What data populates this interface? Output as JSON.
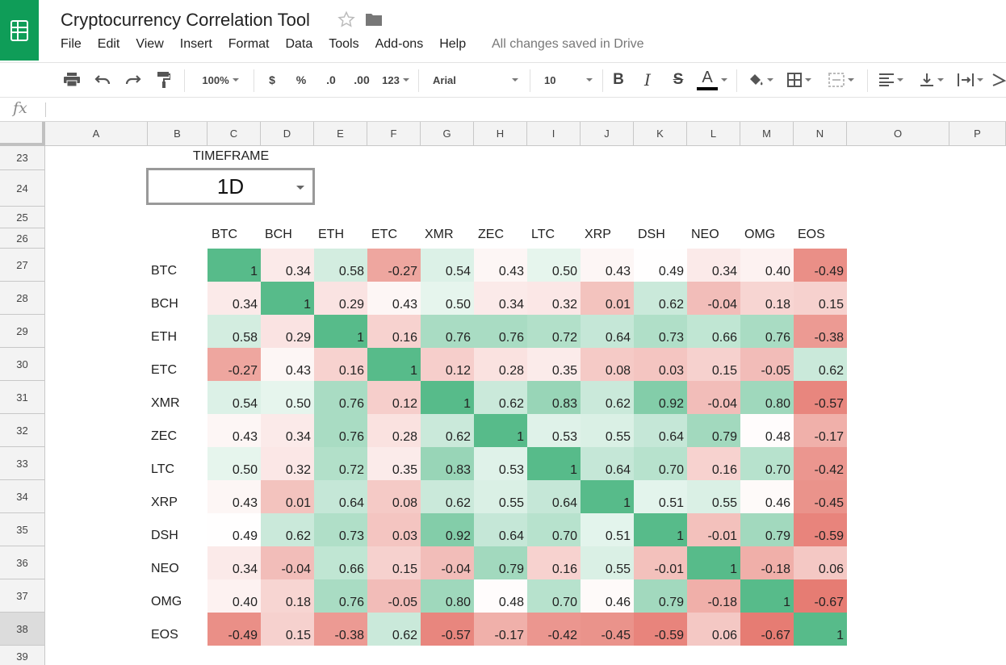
{
  "app": {
    "title": "Cryptocurrency Correlation Tool",
    "save_status": "All changes saved in Drive",
    "brand_color": "#0f9d58"
  },
  "menu": [
    "File",
    "Edit",
    "View",
    "Insert",
    "Format",
    "Data",
    "Tools",
    "Add-ons",
    "Help"
  ],
  "toolbar": {
    "zoom": "100%",
    "currency": "$",
    "percent": "%",
    "decrease_decimals": ".0",
    "increase_decimals": ".00",
    "more_formats": "123",
    "font": "Arial",
    "font_size": "10",
    "bold": "B",
    "italic": "I",
    "strikethrough": "S",
    "text_color_label": "A",
    "icons": [
      "print-icon",
      "undo-icon",
      "redo-icon",
      "paint-format-icon",
      "fill-color-icon",
      "borders-icon",
      "merge-cells-icon",
      "align-left-icon",
      "valign-bottom-icon",
      "text-wrap-icon",
      "rotate-icon"
    ]
  },
  "formula_bar": {
    "label": "fx",
    "value": ""
  },
  "grid": {
    "columns": [
      "A",
      "B",
      "C",
      "D",
      "E",
      "F",
      "G",
      "H",
      "I",
      "J",
      "K",
      "L",
      "M",
      "N",
      "O",
      "P"
    ],
    "rows": [
      "23",
      "24",
      "25",
      "26",
      "27",
      "28",
      "29",
      "30",
      "31",
      "32",
      "33",
      "34",
      "35",
      "36",
      "37",
      "38",
      "39"
    ],
    "active_row": "38"
  },
  "timeframe": {
    "label": "TIMEFRAME",
    "value": "1D"
  },
  "matrix": {
    "coins": [
      "BTC",
      "BCH",
      "ETH",
      "ETC",
      "XMR",
      "ZEC",
      "LTC",
      "XRP",
      "DSH",
      "NEO",
      "OMG",
      "EOS"
    ],
    "values": [
      [
        "1",
        "0.34",
        "0.58",
        "-0.27",
        "0.54",
        "0.43",
        "0.50",
        "0.43",
        "0.49",
        "0.34",
        "0.40",
        "-0.49"
      ],
      [
        "0.34",
        "1",
        "0.29",
        "0.43",
        "0.50",
        "0.34",
        "0.32",
        "0.01",
        "0.62",
        "-0.04",
        "0.18",
        "0.15"
      ],
      [
        "0.58",
        "0.29",
        "1",
        "0.16",
        "0.76",
        "0.76",
        "0.72",
        "0.64",
        "0.73",
        "0.66",
        "0.76",
        "-0.38"
      ],
      [
        "-0.27",
        "0.43",
        "0.16",
        "1",
        "0.12",
        "0.28",
        "0.35",
        "0.08",
        "0.03",
        "0.15",
        "-0.05",
        "0.62"
      ],
      [
        "0.54",
        "0.50",
        "0.76",
        "0.12",
        "1",
        "0.62",
        "0.83",
        "0.62",
        "0.92",
        "-0.04",
        "0.80",
        "-0.57"
      ],
      [
        "0.43",
        "0.34",
        "0.76",
        "0.28",
        "0.62",
        "1",
        "0.53",
        "0.55",
        "0.64",
        "0.79",
        "0.48",
        "-0.17"
      ],
      [
        "0.50",
        "0.32",
        "0.72",
        "0.35",
        "0.83",
        "0.53",
        "1",
        "0.64",
        "0.70",
        "0.16",
        "0.70",
        "-0.42"
      ],
      [
        "0.43",
        "0.01",
        "0.64",
        "0.08",
        "0.62",
        "0.55",
        "0.64",
        "1",
        "0.51",
        "0.55",
        "0.46",
        "-0.45"
      ],
      [
        "0.49",
        "0.62",
        "0.73",
        "0.03",
        "0.92",
        "0.64",
        "0.70",
        "0.51",
        "1",
        "-0.01",
        "0.79",
        "-0.59"
      ],
      [
        "0.34",
        "-0.04",
        "0.66",
        "0.15",
        "-0.04",
        "0.79",
        "0.16",
        "0.55",
        "-0.01",
        "1",
        "-0.18",
        "0.06"
      ],
      [
        "0.40",
        "0.18",
        "0.76",
        "-0.05",
        "0.80",
        "0.48",
        "0.70",
        "0.46",
        "0.79",
        "-0.18",
        "1",
        "-0.67"
      ],
      [
        "-0.49",
        "0.15",
        "-0.38",
        "0.62",
        "-0.57",
        "-0.17",
        "-0.42",
        "-0.45",
        "-0.59",
        "0.06",
        "-0.67",
        "1"
      ]
    ],
    "colors": {
      "positive": "#57bb8a",
      "neutral": "#ffffff",
      "negative": "#e67c73"
    }
  }
}
